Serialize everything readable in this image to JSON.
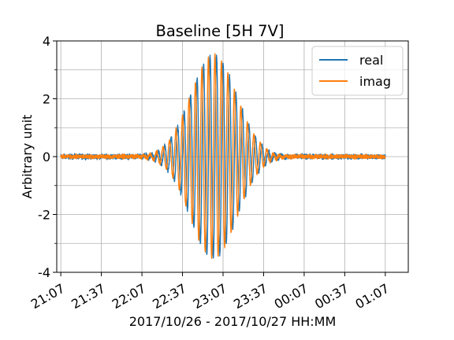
{
  "chart_data": {
    "type": "line",
    "title": "Baseline [5H 7V]",
    "xlabel": "2017/10/26 - 2017/10/27 HH:MM",
    "ylabel": "Arbitrary unit",
    "x_unit": "time (HH:MM)",
    "x_range": [
      "21:07",
      "01:07"
    ],
    "xlim": [
      "21:04",
      "01:24"
    ],
    "ylim": [
      -4,
      4
    ],
    "x_ticks": [
      "21:07",
      "21:37",
      "22:07",
      "22:37",
      "23:07",
      "23:37",
      "00:07",
      "00:37",
      "01:07"
    ],
    "y_ticks": [
      -4,
      -2,
      0,
      2,
      4
    ],
    "y_tick_labels": [
      "-4",
      "-2",
      "0",
      "2",
      "4"
    ],
    "grid": true,
    "legend_position": "upper right",
    "series": [
      {
        "name": "real",
        "color": "#1f77b4",
        "envelope_peak": 3.5,
        "envelope_center": "23:00",
        "noise_amplitude": 0.12,
        "fringe_period_min": 4.8
      },
      {
        "name": "imag",
        "color": "#ff7f0e",
        "envelope_peak": 3.5,
        "envelope_center": "23:00",
        "noise_amplitude": 0.1,
        "fringe_period_min": 4.8
      }
    ]
  }
}
